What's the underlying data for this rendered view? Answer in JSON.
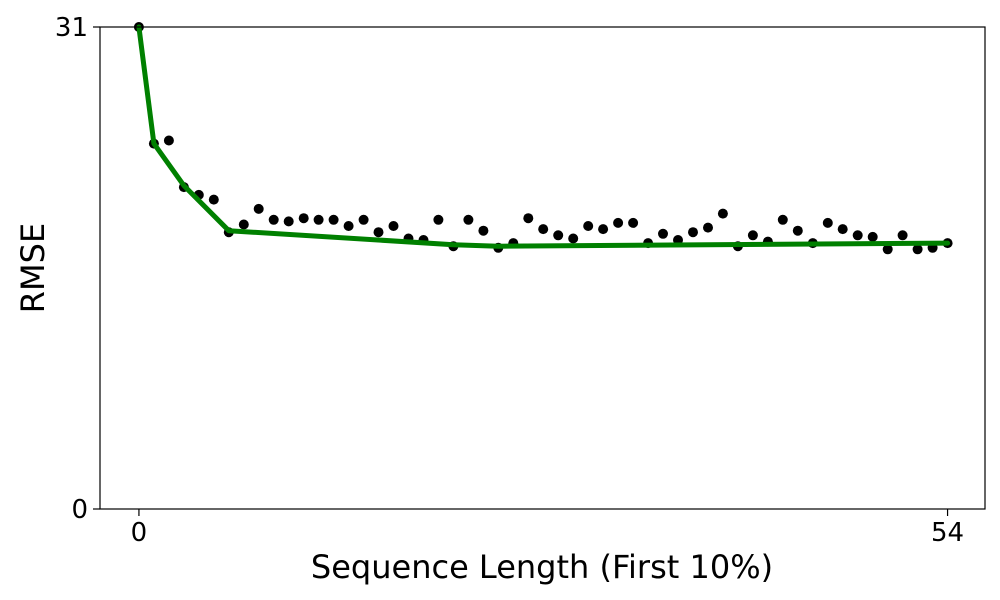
{
  "chart_data": {
    "type": "scatter",
    "xlabel": "Sequence Length (First 10%)",
    "ylabel": "RMSE",
    "xlim": [
      -2.6,
      56.5
    ],
    "ylim": [
      0,
      31
    ],
    "x_ticks": [
      0,
      54
    ],
    "y_ticks": [
      0,
      31
    ],
    "x_tick_labels": [
      "0",
      "54"
    ],
    "y_tick_labels": [
      "0",
      "31"
    ],
    "grid": false,
    "colors": {
      "points": "#000000",
      "line": "#008000",
      "axes": "#000000",
      "background": "#ffffff"
    },
    "series": [
      {
        "kind": "scatter",
        "x": [
          0,
          1,
          2,
          3,
          4,
          5,
          6,
          7,
          8,
          9,
          10,
          11,
          12,
          13,
          14,
          15,
          16,
          17,
          18,
          19,
          20,
          21,
          22,
          23,
          24,
          25,
          26,
          27,
          28,
          29,
          30,
          31,
          32,
          33,
          34,
          35,
          36,
          37,
          38,
          39,
          40,
          41,
          42,
          43,
          44,
          45,
          46,
          47,
          48,
          49,
          50,
          51,
          52,
          53,
          54
        ],
        "y": [
          31.0,
          23.5,
          23.7,
          20.7,
          20.2,
          19.9,
          17.8,
          18.3,
          19.3,
          18.6,
          18.5,
          18.7,
          18.6,
          18.6,
          18.2,
          18.6,
          17.8,
          18.2,
          17.4,
          17.3,
          18.6,
          16.9,
          18.6,
          17.9,
          16.8,
          17.1,
          18.7,
          18.0,
          17.6,
          17.4,
          18.2,
          18.0,
          18.4,
          18.4,
          17.1,
          17.7,
          17.3,
          17.8,
          18.1,
          19.0,
          16.9,
          17.6,
          17.2,
          18.6,
          17.9,
          17.1,
          18.4,
          18.0,
          17.6,
          17.5,
          16.7,
          17.6,
          16.7,
          16.8,
          17.1
        ]
      },
      {
        "kind": "line",
        "x": [
          0,
          1,
          3,
          6,
          21,
          24,
          54
        ],
        "y": [
          31.0,
          23.5,
          20.8,
          17.9,
          17.0,
          16.9,
          17.1
        ]
      }
    ]
  }
}
